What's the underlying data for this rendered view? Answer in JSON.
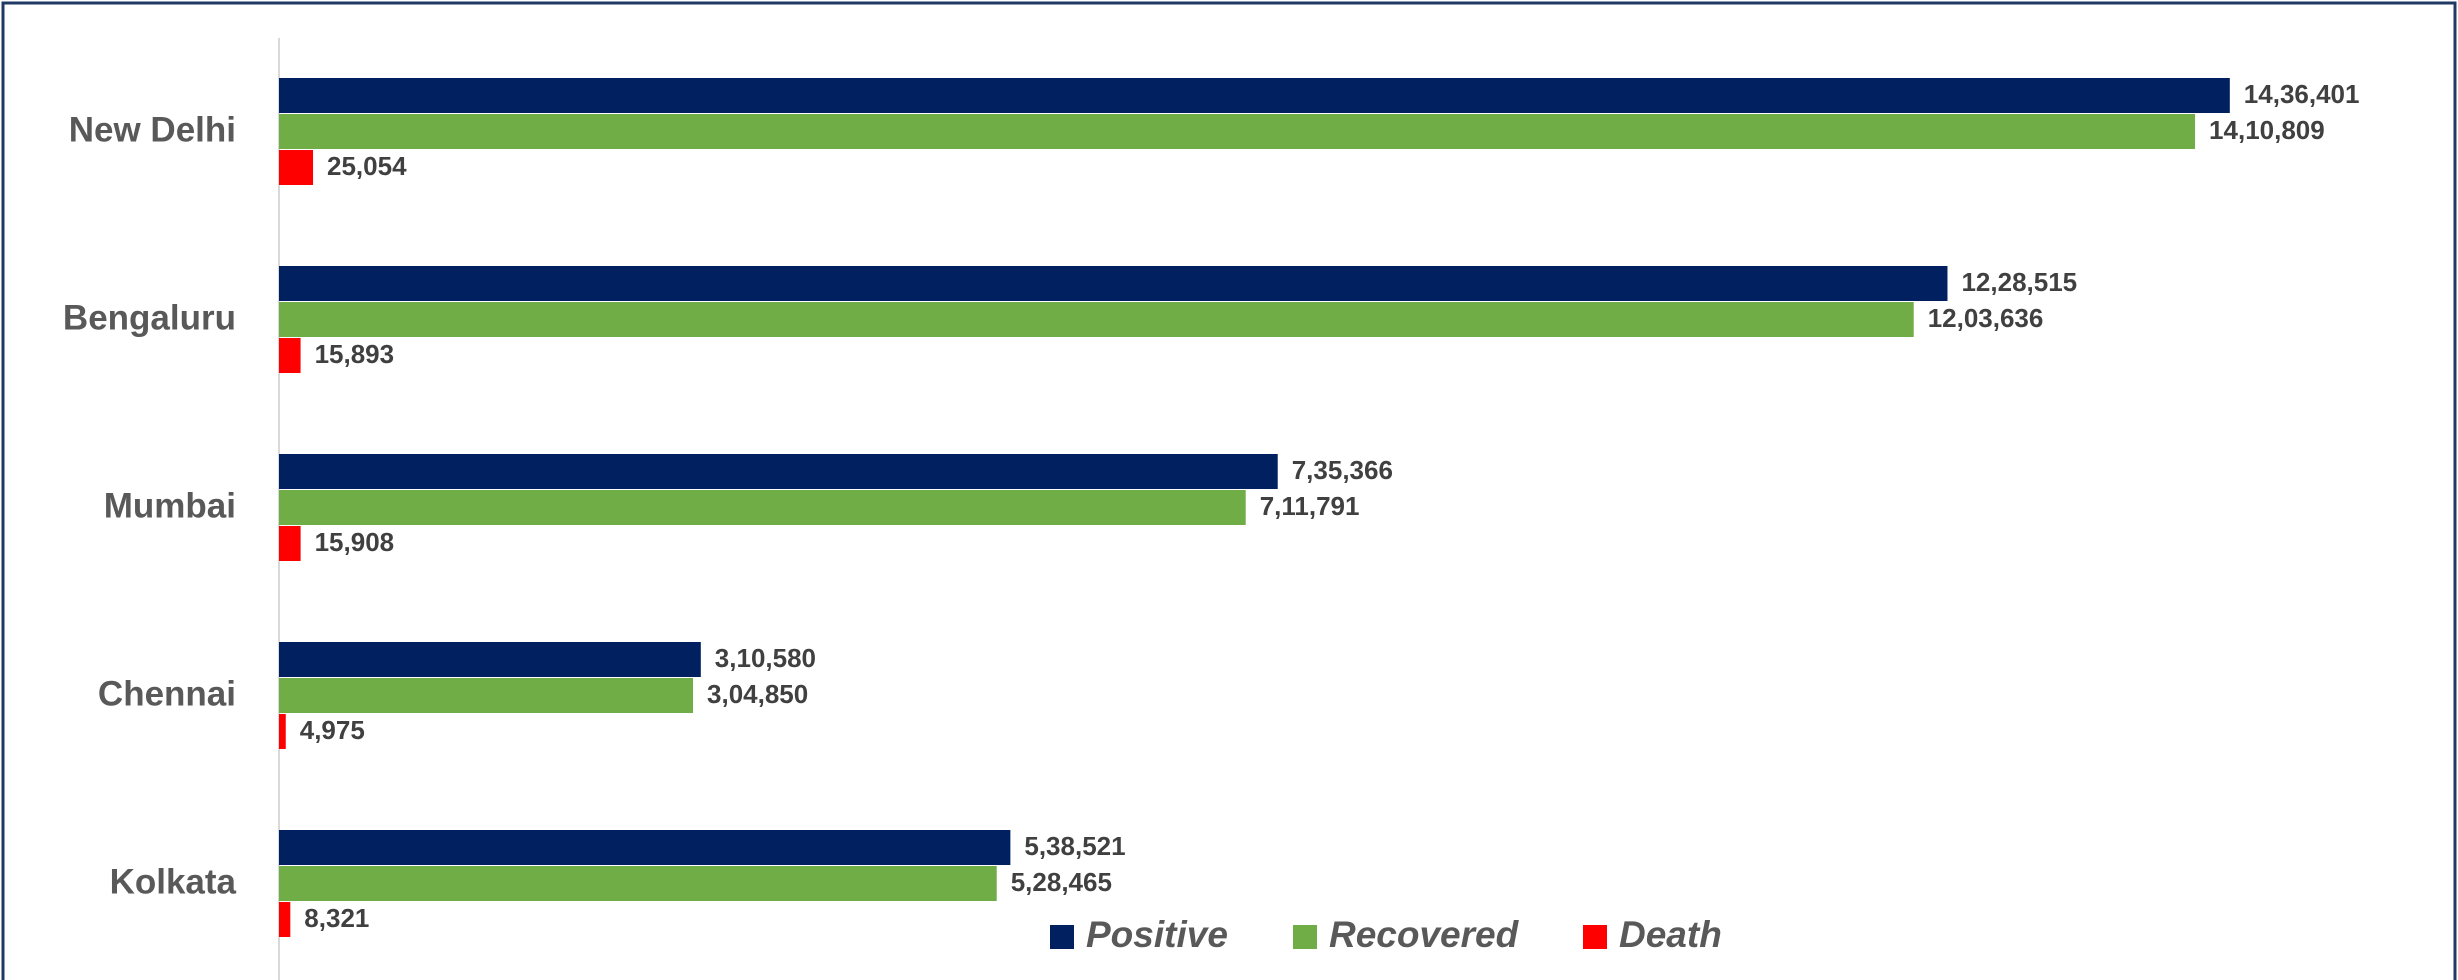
{
  "chart_data": {
    "type": "hbar",
    "categories": [
      "New Delhi",
      "Bengaluru",
      "Mumbai",
      "Chennai",
      "Kolkata"
    ],
    "series": [
      {
        "name": "Positive",
        "color": "#002060",
        "values": [
          1436401,
          1228515,
          735366,
          310580,
          538521
        ],
        "value_labels": [
          "14,36,401",
          "12,28,515",
          "7,35,366",
          "3,10,580",
          "5,38,521"
        ]
      },
      {
        "name": "Recovered",
        "color": "#70ad47",
        "values": [
          1410809,
          1203636,
          711791,
          304850,
          528465
        ],
        "value_labels": [
          "14,10,809",
          "12,03,636",
          "7,11,791",
          "3,04,850",
          "5,28,465"
        ]
      },
      {
        "name": "Death",
        "color": "#ff0000",
        "values": [
          25054,
          15893,
          15908,
          4975,
          8321
        ],
        "value_labels": [
          "25,054",
          "15,893",
          "15,908",
          "4,975",
          "8,321"
        ]
      }
    ],
    "xlim": [
      0,
      1600000
    ],
    "legend": "bottom"
  }
}
